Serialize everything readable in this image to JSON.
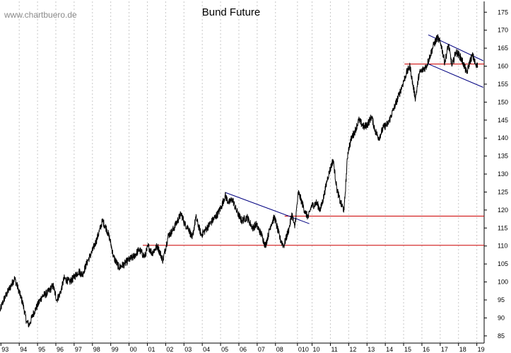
{
  "watermark": "www.chartbuero.de",
  "chart_data": {
    "type": "line",
    "title": "Bund Future",
    "xlabel": "",
    "ylabel": "",
    "x_range": [
      1993.0,
      2019.45
    ],
    "ylim": [
      83,
      178
    ],
    "y_ticks": [
      85,
      90,
      95,
      100,
      105,
      110,
      115,
      120,
      125,
      130,
      135,
      140,
      145,
      150,
      155,
      160,
      165,
      170,
      175
    ],
    "x_ticks": [
      {
        "label": "93",
        "x": 1993.05
      },
      {
        "label": "94",
        "x": 1994.05
      },
      {
        "label": "95",
        "x": 1995.05
      },
      {
        "label": "96",
        "x": 1996.05
      },
      {
        "label": "97",
        "x": 1997.05
      },
      {
        "label": "98",
        "x": 1998.05
      },
      {
        "label": "99",
        "x": 1999.05
      },
      {
        "label": "00",
        "x": 2000.05
      },
      {
        "label": "01",
        "x": 2001.05
      },
      {
        "label": "02",
        "x": 2002.05
      },
      {
        "label": "03",
        "x": 2003.05
      },
      {
        "label": "04",
        "x": 2004.05
      },
      {
        "label": "05",
        "x": 2005.05
      },
      {
        "label": "06",
        "x": 2006.05
      },
      {
        "label": "07",
        "x": 2007.05
      },
      {
        "label": "08",
        "x": 2008.05
      },
      {
        "label": "010",
        "x": 2009.25
      },
      {
        "label": "10",
        "x": 2010.05
      },
      {
        "label": "11",
        "x": 2011.05
      },
      {
        "label": "12",
        "x": 2012.05
      },
      {
        "label": "13",
        "x": 2013.05
      },
      {
        "label": "14",
        "x": 2014.05
      },
      {
        "label": "15",
        "x": 2015.05
      },
      {
        "label": "16",
        "x": 2016.05
      },
      {
        "label": "17",
        "x": 2017.05
      },
      {
        "label": "18",
        "x": 2018.05
      },
      {
        "label": "19",
        "x": 2019.05
      }
    ],
    "grid": {
      "vertical": "dotted",
      "horizontal": false
    },
    "series": [
      {
        "x": [
          1993.0,
          1993.2,
          1993.5,
          1993.8,
          1994.0,
          1994.25,
          1994.45,
          1994.6,
          1994.8,
          1995.0,
          1995.3,
          1995.6,
          1995.9,
          1996.1,
          1996.3,
          1996.5,
          1996.8,
          1997.0,
          1997.3,
          1997.5,
          1997.8,
          1998.0,
          1998.3,
          1998.6,
          1998.8,
          1999.0,
          1999.2,
          1999.5,
          1999.8,
          2000.0,
          2000.3,
          2000.6,
          2000.9,
          2001.1,
          2001.3,
          2001.6,
          2001.9,
          2002.2,
          2002.4,
          2002.6,
          2002.9,
          2003.1,
          2003.3,
          2003.5,
          2003.7,
          2004.0,
          2004.3,
          2004.6,
          2004.9,
          2005.1,
          2005.3,
          2005.5,
          2005.7,
          2005.9,
          2006.2,
          2006.5,
          2006.8,
          2007.0,
          2007.3,
          2007.5,
          2007.8,
          2008.0,
          2008.3,
          2008.5,
          2008.8,
          2008.95,
          2009.1,
          2009.3,
          2009.5,
          2009.7,
          2009.85,
          2010.0,
          2010.3,
          2010.5,
          2010.7,
          2010.9,
          2011.2,
          2011.4,
          2011.6,
          2011.8,
          2012.0,
          2012.2,
          2012.4,
          2012.6,
          2012.9,
          2013.1,
          2013.3,
          2013.5,
          2013.7,
          2013.95,
          2014.2,
          2014.5,
          2014.8,
          2015.0,
          2015.2,
          2015.4,
          2015.55,
          2015.7,
          2015.9,
          2016.1,
          2016.3,
          2016.5,
          2016.7,
          2016.9,
          2017.1,
          2017.3,
          2017.5,
          2017.7,
          2017.9,
          2018.1,
          2018.3,
          2018.5,
          2018.65,
          2018.8,
          2018.9,
          2019.0,
          2019.1
        ],
        "y": [
          92,
          95,
          98,
          101,
          98,
          94,
          89,
          88,
          91,
          93,
          96,
          97,
          99,
          95,
          97,
          101,
          100,
          101,
          103,
          102,
          106,
          108,
          112,
          117,
          115,
          112,
          107,
          104,
          105,
          106,
          107,
          109,
          107,
          110,
          108,
          110,
          106,
          113,
          114,
          116,
          119,
          116,
          115,
          112,
          118,
          113,
          115,
          117,
          119,
          121,
          124,
          122,
          123,
          120,
          117,
          118,
          115,
          116,
          113,
          110,
          116,
          118,
          112,
          110,
          115,
          119,
          115,
          125,
          122,
          119,
          118,
          121,
          122,
          120,
          124,
          129,
          134,
          126,
          122,
          120,
          136,
          140,
          142,
          145,
          143,
          144,
          146,
          142,
          140,
          143,
          144,
          148,
          152,
          155,
          158,
          160,
          155,
          151,
          158,
          159,
          160,
          163,
          166,
          168,
          166,
          161,
          166,
          160,
          164,
          163,
          161,
          158,
          161,
          163,
          162,
          160,
          160
        ]
      }
    ],
    "lines": [
      {
        "x1": 2000.8,
        "y1": 110.2,
        "x2": 2019.45,
        "y2": 110.2,
        "color": "#cc0000"
      },
      {
        "x1": 2008.55,
        "y1": 118.3,
        "x2": 2019.45,
        "y2": 118.3,
        "color": "#cc0000"
      },
      {
        "x1": 2015.1,
        "y1": 160.6,
        "x2": 2019.45,
        "y2": 160.6,
        "color": "#cc0000"
      },
      {
        "x1": 2005.3,
        "y1": 124.9,
        "x2": 2009.9,
        "y2": 116.2,
        "color": "#000080"
      },
      {
        "x1": 2016.4,
        "y1": 168.7,
        "x2": 2019.4,
        "y2": 161.5,
        "color": "#000080"
      },
      {
        "x1": 2016.4,
        "y1": 160.6,
        "x2": 2019.4,
        "y2": 154.1,
        "color": "#000080"
      }
    ],
    "colors": {
      "series": "#000000",
      "support": "#cc0000",
      "trend": "#000080",
      "grid": "#c8c8c8",
      "frame": "#000000"
    }
  }
}
